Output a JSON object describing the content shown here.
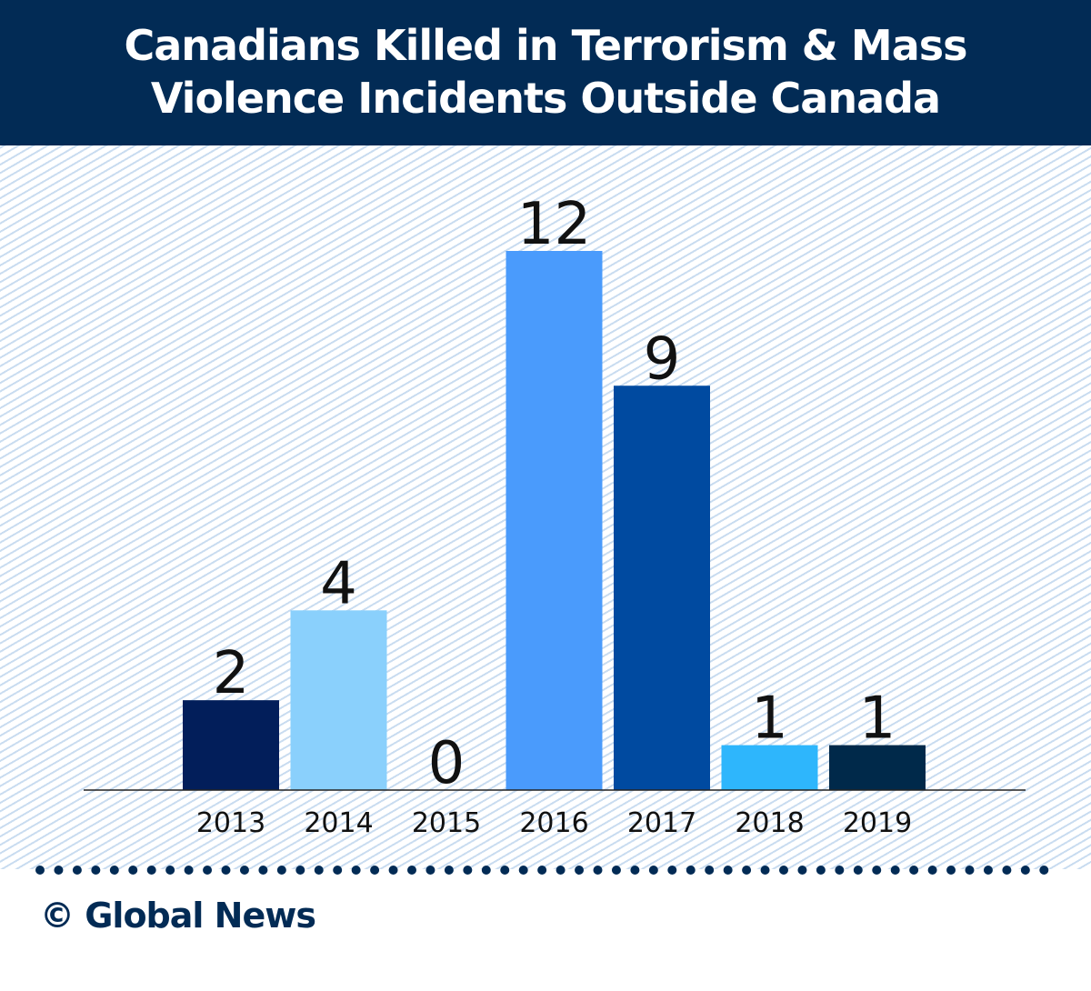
{
  "header": {
    "title_line1": "Canadians Killed in Terrorism & Mass",
    "title_line2": "Violence Incidents Outside Canada"
  },
  "chart_data": {
    "type": "bar",
    "title": "Canadians Killed in Terrorism & Mass Violence Incidents Outside Canada",
    "categories": [
      "2013",
      "2014",
      "2015",
      "2016",
      "2017",
      "2018",
      "2019"
    ],
    "values": [
      2,
      4,
      0,
      12,
      9,
      1,
      1
    ],
    "colors": [
      "#021e5a",
      "#8ad0fc",
      "#8ad0fc",
      "#4a9bfc",
      "#004aa0",
      "#2eb6fc",
      "#00294a"
    ],
    "xlabel": "",
    "ylabel": "",
    "ylim": [
      0,
      12
    ],
    "grid": false,
    "data_labels": true
  },
  "footer": {
    "copyright": "© Global News"
  }
}
